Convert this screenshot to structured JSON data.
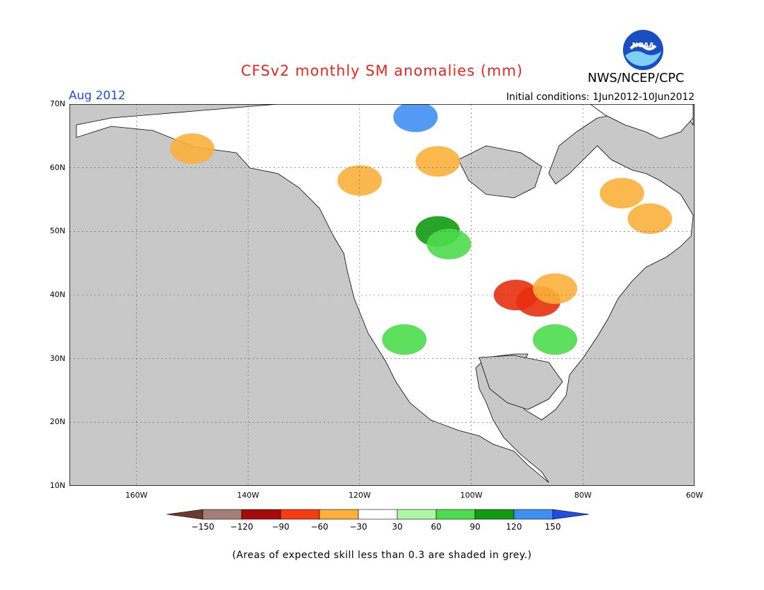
{
  "header": {
    "title": "CFSv2 monthly SM anomalies (mm)",
    "agency": "NWS/NCEP/CPC",
    "logo_text": "NOAA",
    "valid_month": "Aug 2012",
    "initial_conditions": "Initial conditions: 1Jun2012-10Jun2012"
  },
  "map": {
    "land_color": "#ffffff",
    "masked_color": "#c8c8c8",
    "lat_labels": [
      "70N",
      "60N",
      "50N",
      "40N",
      "30N",
      "20N",
      "10N"
    ],
    "lon_labels": [
      "160W",
      "140W",
      "120W",
      "100W",
      "80W",
      "60W"
    ],
    "lat_values": [
      70,
      60,
      50,
      40,
      30,
      20,
      10
    ],
    "lon_values": [
      -160,
      -140,
      -120,
      -100,
      -80,
      -60
    ],
    "extent": {
      "lon_min": -172,
      "lon_max": -60,
      "lat_min": 10,
      "lat_max": 70
    },
    "anomaly_regions": [
      {
        "name": "midwest-drought",
        "color": "#e8300f",
        "lon": -92,
        "lat": 40
      },
      {
        "name": "midwest-drought-2",
        "color": "#e8300f",
        "lon": -88,
        "lat": 39
      },
      {
        "name": "ohio-valley-dry",
        "color": "#fbb03b",
        "lon": -85,
        "lat": 41
      },
      {
        "name": "northern-plains-wet",
        "color": "#119a11",
        "lon": -106,
        "lat": 50
      },
      {
        "name": "northern-plains-wet-2",
        "color": "#4ddc4d",
        "lon": -104,
        "lat": 48
      },
      {
        "name": "canada-dry",
        "color": "#fbb03b",
        "lon": -106,
        "lat": 61
      },
      {
        "name": "labrador-dry",
        "color": "#fbb03b",
        "lon": -73,
        "lat": 56
      },
      {
        "name": "quebec-dry",
        "color": "#fbb03b",
        "lon": -68,
        "lat": 52
      },
      {
        "name": "southeast-wet",
        "color": "#4ddc4d",
        "lon": -85,
        "lat": 33
      },
      {
        "name": "southwest-wet",
        "color": "#4ddc4d",
        "lon": -112,
        "lat": 33
      },
      {
        "name": "alaska-mixed",
        "color": "#fbb03b",
        "lon": -150,
        "lat": 63
      },
      {
        "name": "yukon-dry",
        "color": "#fbb03b",
        "lon": -120,
        "lat": 58
      },
      {
        "name": "arctic-wet",
        "color": "#3f8ff2",
        "lon": -110,
        "lat": 68
      }
    ]
  },
  "colorbar": {
    "labels": [
      "-150",
      "-120",
      "-90",
      "-60",
      "-30",
      "30",
      "60",
      "90",
      "120",
      "150"
    ],
    "colors": [
      "#6b3a2a",
      "#a37f77",
      "#a50b0b",
      "#f43b12",
      "#fbb03b",
      "#ffffff",
      "#aff5a6",
      "#4ddc4d",
      "#119a11",
      "#3f8ff2",
      "#1f4fe0"
    ]
  },
  "footnote": "(Areas of expected skill less than 0.3 are shaded in grey.)"
}
